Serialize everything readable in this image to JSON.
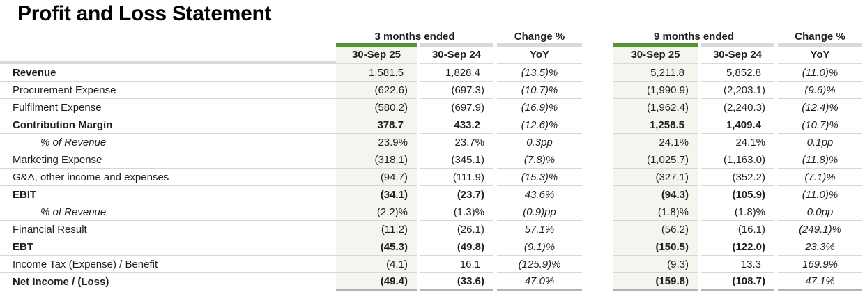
{
  "title": "Profit and Loss Statement",
  "colors": {
    "accent_green": "#569431",
    "header_bar_gray": "#d9d9d9",
    "column_shade": "#f3f6ef",
    "row_divider": "#d6d6d6",
    "table_bottom_border": "#b3b3b3"
  },
  "sections": [
    {
      "period_label": "3 months ended",
      "change_label": "Change %",
      "col1_header": "30-Sep 25",
      "col2_header": "30-Sep 24",
      "change_col_header": "YoY"
    },
    {
      "period_label": "9 months ended",
      "change_label": "Change %",
      "col1_header": "30-Sep 25",
      "col2_header": "30-Sep 24",
      "change_col_header": "YoY"
    }
  ],
  "rows": [
    {
      "label": "Revenue",
      "label_bold": true,
      "values_bold": false,
      "indent_italic": false,
      "m3": [
        "1,581.5",
        "1,828.4",
        "(13.5)%"
      ],
      "m9": [
        "5,211.8",
        "5,852.8",
        "(11.0)%"
      ]
    },
    {
      "label": "Procurement Expense",
      "label_bold": false,
      "values_bold": false,
      "indent_italic": false,
      "m3": [
        "(622.6)",
        "(697.3)",
        "(10.7)%"
      ],
      "m9": [
        "(1,990.9)",
        "(2,203.1)",
        "(9.6)%"
      ]
    },
    {
      "label": "Fulfilment Expense",
      "label_bold": false,
      "values_bold": false,
      "indent_italic": false,
      "m3": [
        "(580.2)",
        "(697.9)",
        "(16.9)%"
      ],
      "m9": [
        "(1,962.4)",
        "(2,240.3)",
        "(12.4)%"
      ]
    },
    {
      "label": "Contribution Margin",
      "label_bold": true,
      "values_bold": true,
      "indent_italic": false,
      "m3": [
        "378.7",
        "433.2",
        "(12.6)%"
      ],
      "m9": [
        "1,258.5",
        "1,409.4",
        "(10.7)%"
      ]
    },
    {
      "label": "% of Revenue",
      "label_bold": false,
      "values_bold": false,
      "indent_italic": true,
      "m3": [
        "23.9%",
        "23.7%",
        "0.3pp"
      ],
      "m9": [
        "24.1%",
        "24.1%",
        "0.1pp"
      ]
    },
    {
      "label": "Marketing Expense",
      "label_bold": false,
      "values_bold": false,
      "indent_italic": false,
      "m3": [
        "(318.1)",
        "(345.1)",
        "(7.8)%"
      ],
      "m9": [
        "(1,025.7)",
        "(1,163.0)",
        "(11.8)%"
      ]
    },
    {
      "label": "G&A, other income and expenses",
      "label_bold": false,
      "values_bold": false,
      "indent_italic": false,
      "m3": [
        "(94.7)",
        "(111.9)",
        "(15.3)%"
      ],
      "m9": [
        "(327.1)",
        "(352.2)",
        "(7.1)%"
      ]
    },
    {
      "label": "EBIT",
      "label_bold": true,
      "values_bold": true,
      "indent_italic": false,
      "m3": [
        "(34.1)",
        "(23.7)",
        "43.6%"
      ],
      "m9": [
        "(94.3)",
        "(105.9)",
        "(11.0)%"
      ]
    },
    {
      "label": "% of Revenue",
      "label_bold": false,
      "values_bold": false,
      "indent_italic": true,
      "m3": [
        "(2.2)%",
        "(1.3)%",
        "(0.9)pp"
      ],
      "m9": [
        "(1.8)%",
        "(1.8)%",
        "0.0pp"
      ]
    },
    {
      "label": "Financial Result",
      "label_bold": false,
      "values_bold": false,
      "indent_italic": false,
      "m3": [
        "(11.2)",
        "(26.1)",
        "57.1%"
      ],
      "m9": [
        "(56.2)",
        "(16.1)",
        "(249.1)%"
      ]
    },
    {
      "label": "EBT",
      "label_bold": true,
      "values_bold": true,
      "indent_italic": false,
      "m3": [
        "(45.3)",
        "(49.8)",
        "(9.1)%"
      ],
      "m9": [
        "(150.5)",
        "(122.0)",
        "23.3%"
      ]
    },
    {
      "label": "Income Tax (Expense) / Benefit",
      "label_bold": false,
      "values_bold": false,
      "indent_italic": false,
      "m3": [
        "(4.1)",
        "16.1",
        "(125.9)%"
      ],
      "m9": [
        "(9.3)",
        "13.3",
        "169.9%"
      ]
    },
    {
      "label": "Net Income / (Loss)",
      "label_bold": true,
      "values_bold": true,
      "indent_italic": false,
      "m3": [
        "(49.4)",
        "(33.6)",
        "47.0%"
      ],
      "m9": [
        "(159.8)",
        "(108.7)",
        "47.1%"
      ]
    }
  ]
}
